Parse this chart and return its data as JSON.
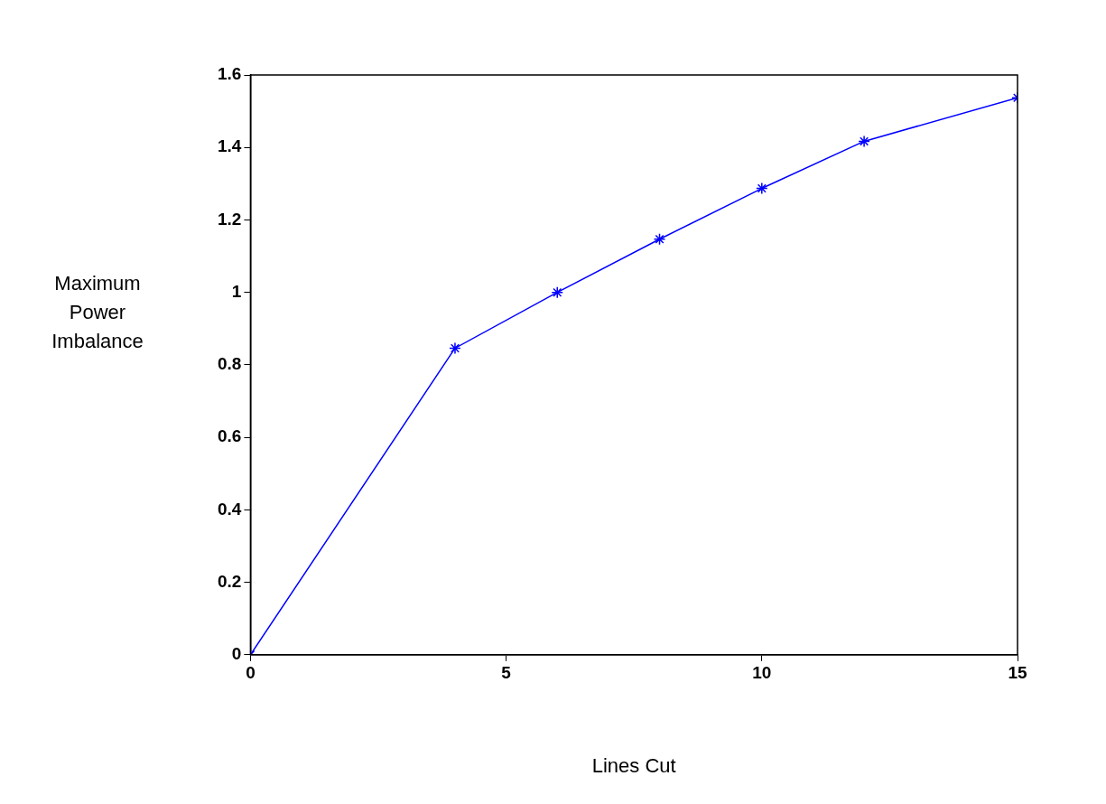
{
  "chart_data": {
    "type": "line",
    "xlabel": "Lines Cut",
    "ylabel": "Maximum Power Imbalance",
    "x": [
      0,
      4,
      6,
      8,
      10,
      12,
      15
    ],
    "series": [
      {
        "color": "#0000ff",
        "values": [
          0,
          0.846,
          1.0,
          1.147,
          1.287,
          1.417,
          1.537
        ]
      }
    ],
    "xlim": [
      0,
      15
    ],
    "xticks": [
      0,
      5,
      10,
      15
    ],
    "ylim": [
      0,
      1.6
    ],
    "yticks": [
      0,
      0.2,
      0.4,
      0.6,
      0.8,
      1,
      1.2,
      1.4,
      1.6
    ],
    "grid": false,
    "legend": false,
    "marker": "cross",
    "line_style": "solid"
  }
}
